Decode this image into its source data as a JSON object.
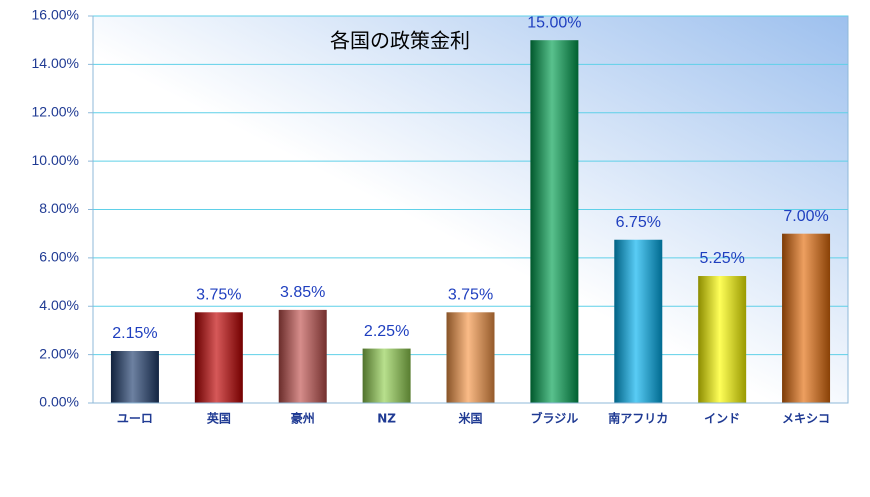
{
  "chart_data": {
    "type": "bar",
    "title": "各国の政策金利",
    "categories": [
      "ユーロ",
      "英国",
      "豪州",
      "NZ",
      "米国",
      "ブラジル",
      "南アフリカ",
      "インド",
      "メキシコ"
    ],
    "values": [
      2.15,
      3.75,
      3.85,
      2.25,
      3.75,
      15.0,
      6.75,
      5.25,
      7.0
    ],
    "value_labels": [
      "2.15%",
      "3.75%",
      "3.85%",
      "2.25%",
      "3.75%",
      "15.00%",
      "6.75%",
      "5.25%",
      "7.00%"
    ],
    "colors": [
      "#1f3d6e",
      "#c00000",
      "#c0504d",
      "#92d050",
      "#f79646",
      "#00a050",
      "#00b0f0",
      "#ffff00",
      "#e46c0a"
    ],
    "ylim": [
      0,
      16
    ],
    "yticks": [
      {
        "value": 0,
        "label": "0.00%"
      },
      {
        "value": 2,
        "label": "2.00%"
      },
      {
        "value": 4,
        "label": "4.00%"
      },
      {
        "value": 6,
        "label": "6.00%"
      },
      {
        "value": 8,
        "label": "8.00%"
      },
      {
        "value": 10,
        "label": "10.00%"
      },
      {
        "value": 12,
        "label": "12.00%"
      },
      {
        "value": 14,
        "label": "14.00%"
      },
      {
        "value": 16,
        "label": "16.00%"
      }
    ],
    "grid": true
  }
}
